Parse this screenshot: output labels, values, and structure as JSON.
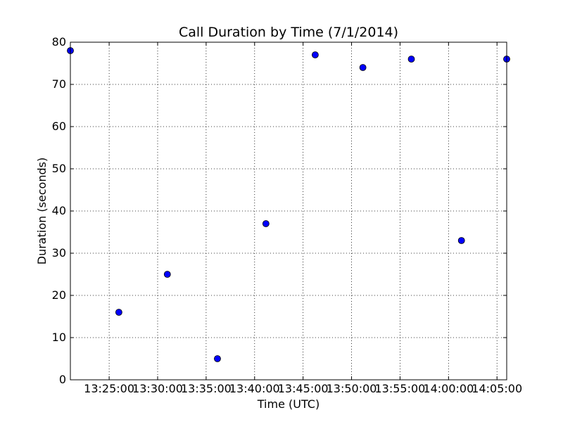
{
  "chart_data": {
    "type": "scatter",
    "title": "Call Duration by Time (7/1/2014)",
    "xlabel": "Time (UTC)",
    "ylabel": "Duration (seconds)",
    "xlim": [
      "13:21:00",
      "14:06:00"
    ],
    "ylim": [
      0,
      80
    ],
    "grid": true,
    "x_ticks": [
      "13:25:00",
      "13:30:00",
      "13:35:00",
      "13:40:00",
      "13:45:00",
      "13:50:00",
      "13:55:00",
      "14:00:00",
      "14:05:00"
    ],
    "y_ticks": [
      0,
      10,
      20,
      30,
      40,
      50,
      60,
      70,
      80
    ],
    "marker_color": "#0000ff",
    "points": [
      {
        "x": "13:21:00",
        "y": 78
      },
      {
        "x": "13:26:00",
        "y": 16
      },
      {
        "x": "13:31:00",
        "y": 25
      },
      {
        "x": "13:36:10",
        "y": 5
      },
      {
        "x": "13:41:10",
        "y": 37
      },
      {
        "x": "13:46:15",
        "y": 77
      },
      {
        "x": "13:51:10",
        "y": 74
      },
      {
        "x": "13:56:10",
        "y": 76
      },
      {
        "x": "14:01:20",
        "y": 33
      },
      {
        "x": "14:06:00",
        "y": 76
      }
    ]
  }
}
